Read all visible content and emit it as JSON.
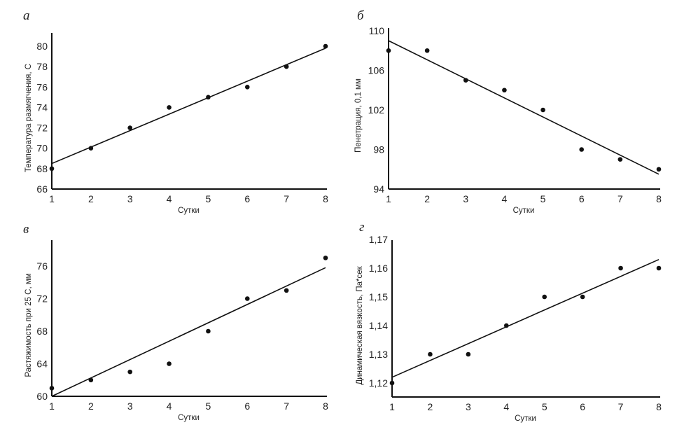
{
  "chart_data": [
    {
      "panel_label": "а",
      "type": "scatter",
      "xlabel": "Сутки",
      "ylabel": "Температура размягчения, С",
      "x": [
        1,
        2,
        3,
        4,
        5,
        6,
        7,
        8
      ],
      "y": [
        68,
        70,
        72,
        74,
        75,
        76,
        78,
        80
      ],
      "trendline": {
        "x": [
          1,
          8
        ],
        "y": [
          68.5,
          79.8
        ]
      },
      "xlim": [
        1,
        8
      ],
      "ylim": [
        66,
        81.5
      ],
      "xticks": [
        "1",
        "2",
        "3",
        "4",
        "5",
        "6",
        "7",
        "8"
      ],
      "yticks": [
        66,
        68,
        70,
        72,
        74,
        76,
        78,
        80
      ],
      "ytick_labels": [
        "66",
        "68",
        "70",
        "72",
        "74",
        "76",
        "78",
        "80"
      ],
      "grid": false
    },
    {
      "panel_label": "б",
      "type": "scatter",
      "xlabel": "Сутки",
      "ylabel": "Пенетрация, 0,1 мм",
      "x": [
        1,
        2,
        3,
        4,
        5,
        6,
        7,
        8
      ],
      "y": [
        108,
        108,
        105,
        104,
        102,
        98,
        97,
        96
      ],
      "trendline": {
        "x": [
          1,
          8
        ],
        "y": [
          109,
          95.5
        ]
      },
      "xlim": [
        1,
        8
      ],
      "ylim": [
        94,
        110
      ],
      "xticks": [
        "1",
        "2",
        "3",
        "4",
        "5",
        "6",
        "7",
        "8"
      ],
      "yticks": [
        94,
        98,
        102,
        106,
        110
      ],
      "ytick_labels": [
        "94",
        "98",
        "102",
        "106",
        "110"
      ],
      "grid": false
    },
    {
      "panel_label": "в",
      "type": "scatter",
      "xlabel": "Сутки",
      "ylabel": "Растяжимость при 25 С, мм",
      "x": [
        1,
        2,
        3,
        4,
        5,
        6,
        7,
        8
      ],
      "y": [
        61,
        62,
        63,
        64,
        68,
        72,
        73,
        77
      ],
      "trendline": {
        "x": [
          1,
          8
        ],
        "y": [
          60,
          75.8
        ]
      },
      "xlim": [
        1,
        8
      ],
      "ylim": [
        60,
        79.5
      ],
      "xticks": [
        "1",
        "2",
        "3",
        "4",
        "5",
        "6",
        "7",
        "8"
      ],
      "yticks": [
        60,
        64,
        68,
        72,
        76
      ],
      "ytick_labels": [
        "60",
        "64",
        "68",
        "72",
        "76"
      ],
      "grid": false
    },
    {
      "panel_label": "г",
      "type": "scatter",
      "xlabel": "Сутки",
      "ylabel": "Динамическая вязкость, Па*сек",
      "x": [
        1,
        2,
        3,
        4,
        5,
        6,
        7,
        8
      ],
      "y": [
        1.12,
        1.13,
        1.13,
        1.14,
        1.15,
        1.15,
        1.16,
        1.16
      ],
      "trendline": {
        "x": [
          1,
          8
        ],
        "y": [
          1.122,
          1.163
        ]
      },
      "xlim": [
        1,
        8
      ],
      "ylim": [
        1.115,
        1.17
      ],
      "xticks": [
        "1",
        "2",
        "3",
        "4",
        "5",
        "6",
        "7",
        "8"
      ],
      "yticks": [
        1.12,
        1.13,
        1.14,
        1.15,
        1.16,
        1.17
      ],
      "ytick_labels": [
        "1,12",
        "1,13",
        "1,14",
        "1,15",
        "1,16",
        "1,17"
      ],
      "grid": false
    }
  ]
}
